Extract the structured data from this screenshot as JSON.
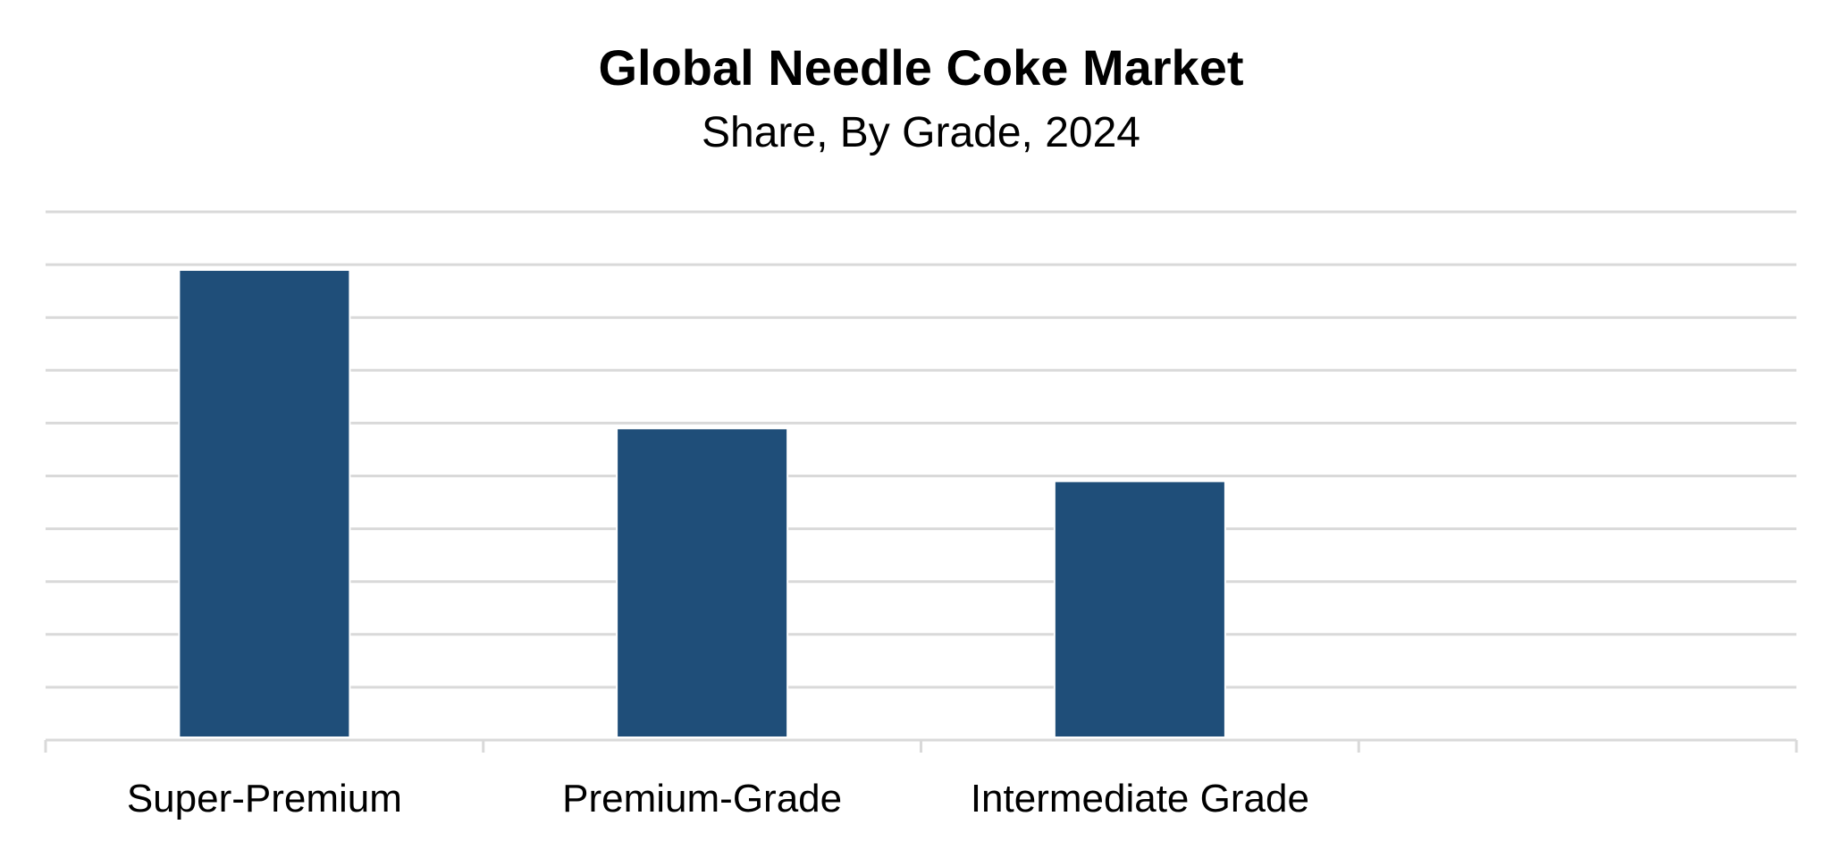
{
  "chart_data": {
    "type": "bar",
    "title": "Global Needle Coke Market",
    "subtitle": "Share, By Grade, 2024",
    "categories": [
      "Super-Premium",
      "Premium-Grade",
      "Intermediate Grade",
      ""
    ],
    "values": [
      8.9,
      5.9,
      4.9,
      null
    ],
    "xlabel": "",
    "ylabel": "",
    "ylim": [
      0,
      10
    ],
    "y_gridline_step": 1,
    "grid": true,
    "legend": "none",
    "y_tick_labels_shown": false,
    "colors": {
      "bar": "#1F4E79",
      "grid": "#D9D9D9",
      "axis": "#D9D9D9"
    }
  }
}
